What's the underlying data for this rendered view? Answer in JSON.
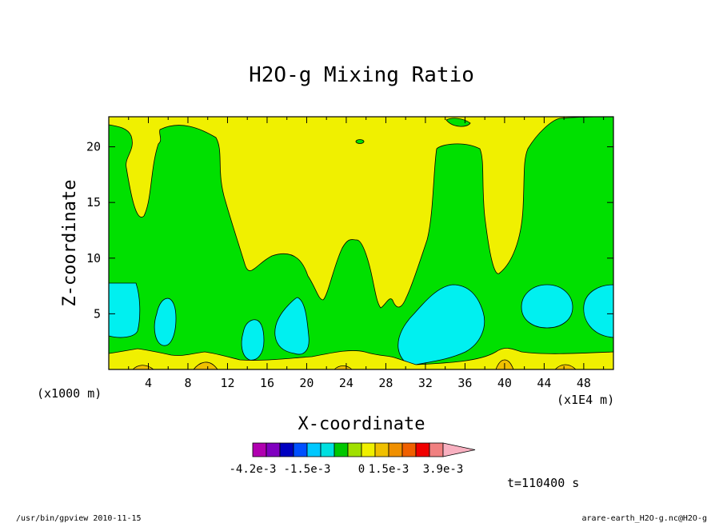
{
  "chart_data": {
    "type": "heatmap",
    "title": "H2O-g Mixing Ratio",
    "xlabel": "X-coordinate",
    "ylabel": "Z-coordinate",
    "x_unit_left": "(x1000 m)",
    "x_unit_right": "(x1E4 m)",
    "xticks": [
      "4",
      "8",
      "12",
      "16",
      "20",
      "24",
      "28",
      "32",
      "36",
      "40",
      "44",
      "48"
    ],
    "xtick_values": [
      4,
      8,
      12,
      16,
      20,
      24,
      28,
      32,
      36,
      40,
      44,
      48
    ],
    "yticks": [
      "5",
      "10",
      "15",
      "20"
    ],
    "ytick_values": [
      5,
      10,
      15,
      20
    ],
    "xlim": [
      0,
      51
    ],
    "ylim": [
      0,
      22.7
    ],
    "colorbar": {
      "colors": [
        "#b000b0",
        "#8000c0",
        "#0000c0",
        "#0050ff",
        "#00c8ff",
        "#00e0e0",
        "#00c800",
        "#a0e000",
        "#f0f000",
        "#f0c000",
        "#f09000",
        "#f06000",
        "#f00000",
        "#f08080",
        "#f8b0c0"
      ],
      "labels": [
        "-4.2e-3",
        "-1.5e-3",
        "0",
        "1.5e-3",
        "3.9e-3"
      ]
    },
    "levels": {
      "below": "#f0c000",
      "low": "#f0f000",
      "mid": "#00e000",
      "high": "#00f0f0"
    },
    "time_label": "t=110400 s"
  },
  "footer": {
    "left": "/usr/bin/gpview   2010-11-15",
    "right": "arare-earth_H2O-g.nc@H2O-g"
  }
}
